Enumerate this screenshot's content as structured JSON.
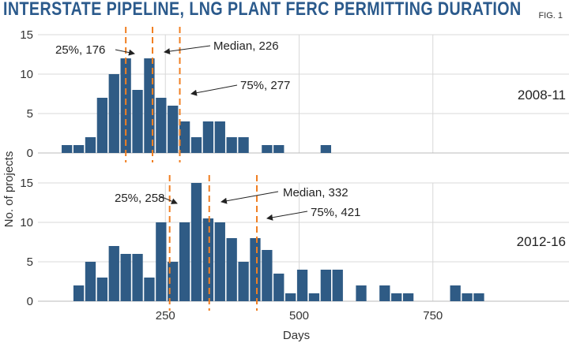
{
  "title": "INTERSTATE PIPELINE, LNG PLANT FERC PERMITTING DURATION",
  "figure_label": "FIG. 1",
  "colors": {
    "bar": "#2f5b85",
    "quartile_line": "#f07f22",
    "grid": "#d8d8d8",
    "title": "#2b5a8c"
  },
  "chart_data": [
    {
      "type": "bar",
      "panel": "2008-11",
      "xlabel": "Days",
      "ylabel": "No. of projects",
      "xlim": [
        0,
        900
      ],
      "ylim": [
        0,
        15
      ],
      "yticks": [
        0,
        5,
        10,
        15
      ],
      "xticks": [
        250,
        500,
        750
      ],
      "bin_width": 22,
      "bins": [
        {
          "x": 66,
          "value": 1
        },
        {
          "x": 88,
          "value": 1
        },
        {
          "x": 110,
          "value": 2
        },
        {
          "x": 132,
          "value": 7
        },
        {
          "x": 154,
          "value": 10
        },
        {
          "x": 176,
          "value": 12
        },
        {
          "x": 198,
          "value": 8
        },
        {
          "x": 220,
          "value": 12
        },
        {
          "x": 242,
          "value": 7
        },
        {
          "x": 264,
          "value": 6
        },
        {
          "x": 286,
          "value": 4
        },
        {
          "x": 308,
          "value": 2
        },
        {
          "x": 330,
          "value": 4
        },
        {
          "x": 352,
          "value": 4
        },
        {
          "x": 374,
          "value": 2
        },
        {
          "x": 396,
          "value": 2
        },
        {
          "x": 440,
          "value": 1
        },
        {
          "x": 462,
          "value": 1
        },
        {
          "x": 550,
          "value": 1
        }
      ],
      "annotations": [
        {
          "label": "25%, 176",
          "x": 176
        },
        {
          "label": "Median, 226",
          "x": 226
        },
        {
          "label": "75%, 277",
          "x": 277
        }
      ]
    },
    {
      "type": "bar",
      "panel": "2012-16",
      "xlabel": "Days",
      "ylabel": "No. of projects",
      "xlim": [
        0,
        900
      ],
      "ylim": [
        0,
        15
      ],
      "yticks": [
        0,
        5,
        10,
        15
      ],
      "xticks": [
        250,
        500,
        750
      ],
      "bin_width": 22,
      "bins": [
        {
          "x": 88,
          "value": 2
        },
        {
          "x": 110,
          "value": 5
        },
        {
          "x": 132,
          "value": 3
        },
        {
          "x": 154,
          "value": 7
        },
        {
          "x": 176,
          "value": 6
        },
        {
          "x": 198,
          "value": 6
        },
        {
          "x": 220,
          "value": 3
        },
        {
          "x": 242,
          "value": 10
        },
        {
          "x": 264,
          "value": 5
        },
        {
          "x": 286,
          "value": 10
        },
        {
          "x": 308,
          "value": 15
        },
        {
          "x": 330,
          "value": 10.5
        },
        {
          "x": 352,
          "value": 10
        },
        {
          "x": 374,
          "value": 8
        },
        {
          "x": 396,
          "value": 5
        },
        {
          "x": 418,
          "value": 8
        },
        {
          "x": 440,
          "value": 6.5
        },
        {
          "x": 462,
          "value": 3.5
        },
        {
          "x": 484,
          "value": 1
        },
        {
          "x": 506,
          "value": 4
        },
        {
          "x": 528,
          "value": 1
        },
        {
          "x": 550,
          "value": 4
        },
        {
          "x": 572,
          "value": 4
        },
        {
          "x": 616,
          "value": 2
        },
        {
          "x": 660,
          "value": 2
        },
        {
          "x": 682,
          "value": 1
        },
        {
          "x": 704,
          "value": 1
        },
        {
          "x": 792,
          "value": 2
        },
        {
          "x": 814,
          "value": 1
        },
        {
          "x": 836,
          "value": 1
        }
      ],
      "annotations": [
        {
          "label": "25%, 258",
          "x": 258
        },
        {
          "label": "Median, 332",
          "x": 332
        },
        {
          "label": "75%, 421",
          "x": 421
        }
      ]
    }
  ]
}
